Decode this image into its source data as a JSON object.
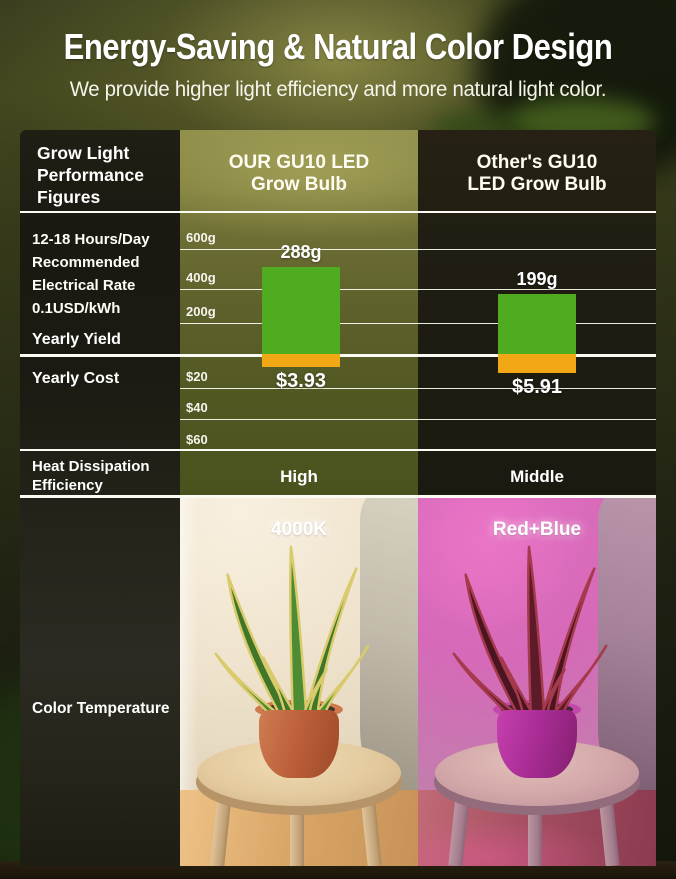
{
  "header": {
    "title": "Energy-Saving & Natural Color Design",
    "subtitle": "We provide higher light efficiency and more natural light color."
  },
  "table": {
    "corner_label": "Grow Light\nPerformance\nFigures",
    "columns": [
      "OUR GU10 LED\nGrow Bulb",
      "Other's GU10\nLED Grow Bulb"
    ]
  },
  "rows": {
    "yield": {
      "conditions": "12-18 Hours/Day\nRecommended\nElectrical Rate\n0.1USD/kWh",
      "label": "Yearly Yield"
    },
    "cost": {
      "label": "Yearly Cost"
    },
    "heat": {
      "label": "Heat Dissipation\nEfficiency",
      "ours": "High",
      "other": "Middle"
    },
    "color_temp": {
      "label": "Color Temperature",
      "ours": "4000K",
      "other": "Red+Blue"
    }
  },
  "chart_data": [
    {
      "type": "bar",
      "title": "Yearly Yield",
      "categories": [
        "OUR GU10 LED Grow Bulb",
        "Other's GU10 LED Grow Bulb"
      ],
      "values": [
        288,
        199
      ],
      "unit": "g",
      "value_labels": [
        "288g",
        "199g"
      ],
      "ticks": [
        "600g",
        "400g",
        "200g"
      ],
      "ylim": [
        0,
        600
      ],
      "grid": true,
      "bar_color": "#4fab20"
    },
    {
      "type": "bar",
      "title": "Yearly Cost",
      "categories": [
        "OUR GU10 LED Grow Bulb",
        "Other's GU10 LED Grow Bulb"
      ],
      "values": [
        3.93,
        5.91
      ],
      "unit": "USD",
      "value_labels": [
        "$3.93",
        "$5.91"
      ],
      "ticks": [
        "$20",
        "$40",
        "$60"
      ],
      "ylim": [
        0,
        60
      ],
      "grid": true,
      "direction": "down",
      "bar_color": "#f2a714"
    }
  ],
  "colors": {
    "yield_bar_green": "#4fab20",
    "cost_bar_orange": "#f2a714",
    "ours_column_olive": "#5e612b",
    "photo_4000k_wall": "#efe3cd",
    "photo_redblue_wall": "#d669b8"
  }
}
